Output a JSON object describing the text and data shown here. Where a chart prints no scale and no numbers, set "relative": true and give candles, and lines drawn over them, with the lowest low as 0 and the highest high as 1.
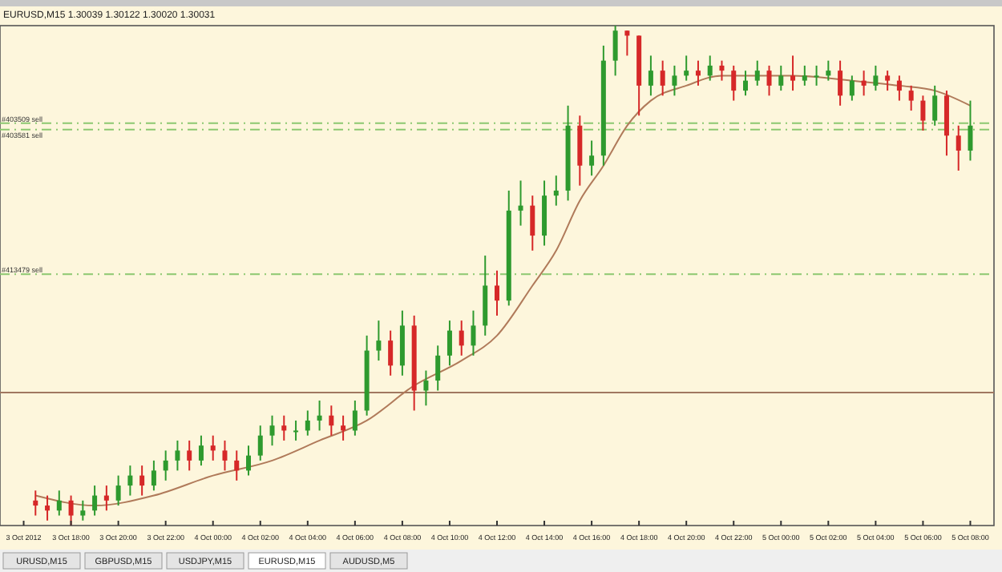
{
  "chart_data": {
    "type": "candlestick",
    "title": "EURUSD,M15  1.30039 1.30122 1.30020 1.30031",
    "relative": true,
    "x": [
      "2012-10-03T16:30",
      "2012-10-03T17:00",
      "2012-10-03T17:30",
      "2012-10-03T18:00",
      "2012-10-03T18:30",
      "2012-10-03T19:00",
      "2012-10-03T19:30",
      "2012-10-03T20:00",
      "2012-10-03T20:30",
      "2012-10-03T21:00",
      "2012-10-03T21:30",
      "2012-10-03T22:00",
      "2012-10-03T22:30",
      "2012-10-03T23:00",
      "2012-10-03T23:30",
      "2012-10-04T00:00",
      "2012-10-04T00:30",
      "2012-10-04T01:00",
      "2012-10-04T01:30",
      "2012-10-04T02:00",
      "2012-10-04T02:30",
      "2012-10-04T03:00",
      "2012-10-04T03:30",
      "2012-10-04T04:00",
      "2012-10-04T04:30",
      "2012-10-04T05:00",
      "2012-10-04T05:30",
      "2012-10-04T06:00",
      "2012-10-04T06:30",
      "2012-10-04T07:00",
      "2012-10-04T07:30",
      "2012-10-04T08:00",
      "2012-10-04T08:30",
      "2012-10-04T09:00",
      "2012-10-04T09:30",
      "2012-10-04T10:00",
      "2012-10-04T10:30",
      "2012-10-04T11:00",
      "2012-10-04T11:30",
      "2012-10-04T12:00",
      "2012-10-04T12:30",
      "2012-10-04T13:00",
      "2012-10-04T13:30",
      "2012-10-04T14:00",
      "2012-10-04T14:30",
      "2012-10-04T15:00",
      "2012-10-04T15:30",
      "2012-10-04T16:00",
      "2012-10-04T16:30",
      "2012-10-04T17:00",
      "2012-10-04T17:30",
      "2012-10-04T18:00",
      "2012-10-04T18:30",
      "2012-10-04T19:00",
      "2012-10-04T19:30",
      "2012-10-04T20:00",
      "2012-10-04T20:30",
      "2012-10-04T21:00",
      "2012-10-04T21:30",
      "2012-10-04T22:00",
      "2012-10-04T22:30",
      "2012-10-04T23:00",
      "2012-10-04T23:30",
      "2012-10-05T00:00",
      "2012-10-05T00:30",
      "2012-10-05T01:00",
      "2012-10-05T01:30",
      "2012-10-05T02:00",
      "2012-10-05T02:30",
      "2012-10-05T03:00",
      "2012-10-05T03:30",
      "2012-10-05T04:00",
      "2012-10-05T04:30",
      "2012-10-05T05:00",
      "2012-10-05T05:30",
      "2012-10-05T06:00",
      "2012-10-05T06:30",
      "2012-10-05T07:00",
      "2012-10-05T07:30",
      "2012-10-05T08:00"
    ],
    "ohlc": [
      [
        0.05,
        0.07,
        0.02,
        0.04
      ],
      [
        0.04,
        0.06,
        0.01,
        0.03
      ],
      [
        0.03,
        0.07,
        0.02,
        0.05
      ],
      [
        0.05,
        0.06,
        0.0,
        0.02
      ],
      [
        0.02,
        0.05,
        0.01,
        0.03
      ],
      [
        0.03,
        0.08,
        0.02,
        0.06
      ],
      [
        0.06,
        0.08,
        0.03,
        0.05
      ],
      [
        0.05,
        0.1,
        0.04,
        0.08
      ],
      [
        0.08,
        0.12,
        0.06,
        0.1
      ],
      [
        0.1,
        0.12,
        0.06,
        0.08
      ],
      [
        0.08,
        0.13,
        0.07,
        0.11
      ],
      [
        0.11,
        0.15,
        0.09,
        0.13
      ],
      [
        0.13,
        0.17,
        0.11,
        0.15
      ],
      [
        0.15,
        0.17,
        0.11,
        0.13
      ],
      [
        0.13,
        0.18,
        0.12,
        0.16
      ],
      [
        0.16,
        0.18,
        0.13,
        0.15
      ],
      [
        0.15,
        0.17,
        0.11,
        0.13
      ],
      [
        0.13,
        0.15,
        0.09,
        0.11
      ],
      [
        0.11,
        0.16,
        0.1,
        0.14
      ],
      [
        0.14,
        0.2,
        0.13,
        0.18
      ],
      [
        0.18,
        0.22,
        0.16,
        0.2
      ],
      [
        0.2,
        0.22,
        0.17,
        0.19
      ],
      [
        0.19,
        0.21,
        0.17,
        0.19
      ],
      [
        0.19,
        0.23,
        0.18,
        0.21
      ],
      [
        0.21,
        0.25,
        0.19,
        0.22
      ],
      [
        0.22,
        0.24,
        0.18,
        0.2
      ],
      [
        0.2,
        0.22,
        0.17,
        0.19
      ],
      [
        0.19,
        0.25,
        0.18,
        0.23
      ],
      [
        0.23,
        0.38,
        0.22,
        0.35
      ],
      [
        0.35,
        0.41,
        0.33,
        0.37
      ],
      [
        0.37,
        0.39,
        0.3,
        0.32
      ],
      [
        0.32,
        0.43,
        0.3,
        0.4
      ],
      [
        0.4,
        0.42,
        0.23,
        0.27
      ],
      [
        0.27,
        0.31,
        0.24,
        0.29
      ],
      [
        0.29,
        0.36,
        0.27,
        0.34
      ],
      [
        0.34,
        0.41,
        0.32,
        0.39
      ],
      [
        0.39,
        0.41,
        0.34,
        0.36
      ],
      [
        0.36,
        0.43,
        0.34,
        0.4
      ],
      [
        0.4,
        0.54,
        0.38,
        0.48
      ],
      [
        0.48,
        0.51,
        0.42,
        0.45
      ],
      [
        0.45,
        0.67,
        0.44,
        0.63
      ],
      [
        0.63,
        0.69,
        0.6,
        0.64
      ],
      [
        0.64,
        0.66,
        0.55,
        0.58
      ],
      [
        0.58,
        0.69,
        0.56,
        0.66
      ],
      [
        0.66,
        0.7,
        0.64,
        0.67
      ],
      [
        0.67,
        0.84,
        0.65,
        0.8
      ],
      [
        0.8,
        0.82,
        0.68,
        0.72
      ],
      [
        0.72,
        0.77,
        0.7,
        0.74
      ],
      [
        0.74,
        0.96,
        0.72,
        0.93
      ],
      [
        0.93,
        1.0,
        0.9,
        0.99
      ],
      [
        0.99,
        0.99,
        0.94,
        0.98
      ],
      [
        0.98,
        0.98,
        0.82,
        0.88
      ],
      [
        0.88,
        0.94,
        0.86,
        0.91
      ],
      [
        0.91,
        0.93,
        0.86,
        0.88
      ],
      [
        0.88,
        0.92,
        0.86,
        0.9
      ],
      [
        0.9,
        0.94,
        0.89,
        0.91
      ],
      [
        0.91,
        0.93,
        0.88,
        0.9
      ],
      [
        0.9,
        0.94,
        0.89,
        0.92
      ],
      [
        0.92,
        0.93,
        0.89,
        0.91
      ],
      [
        0.91,
        0.92,
        0.85,
        0.87
      ],
      [
        0.87,
        0.91,
        0.86,
        0.89
      ],
      [
        0.89,
        0.93,
        0.88,
        0.91
      ],
      [
        0.91,
        0.92,
        0.86,
        0.88
      ],
      [
        0.88,
        0.92,
        0.87,
        0.9
      ],
      [
        0.9,
        0.94,
        0.87,
        0.89
      ],
      [
        0.89,
        0.92,
        0.88,
        0.9
      ],
      [
        0.9,
        0.92,
        0.88,
        0.9
      ],
      [
        0.9,
        0.93,
        0.89,
        0.91
      ],
      [
        0.91,
        0.93,
        0.84,
        0.86
      ],
      [
        0.86,
        0.9,
        0.85,
        0.89
      ],
      [
        0.89,
        0.91,
        0.86,
        0.88
      ],
      [
        0.88,
        0.92,
        0.87,
        0.9
      ],
      [
        0.9,
        0.91,
        0.87,
        0.89
      ],
      [
        0.89,
        0.9,
        0.85,
        0.87
      ],
      [
        0.87,
        0.88,
        0.83,
        0.85
      ],
      [
        0.85,
        0.86,
        0.79,
        0.81
      ],
      [
        0.81,
        0.88,
        0.8,
        0.86
      ],
      [
        0.86,
        0.87,
        0.74,
        0.78
      ],
      [
        0.78,
        0.8,
        0.71,
        0.75
      ],
      [
        0.75,
        0.85,
        0.73,
        0.8
      ]
    ],
    "series": [
      {
        "type": "line",
        "color": "#b07a5a",
        "x": [
          "2012-10-03T16:30",
          "2012-10-03T19:00",
          "2012-10-03T21:30",
          "2012-10-04T00:00",
          "2012-10-04T02:30",
          "2012-10-04T04:30",
          "2012-10-04T06:30",
          "2012-10-04T08:30",
          "2012-10-04T10:30",
          "2012-10-04T12:00",
          "2012-10-04T13:30",
          "2012-10-04T14:30",
          "2012-10-04T15:30",
          "2012-10-04T16:30",
          "2012-10-04T17:30",
          "2012-10-04T18:30",
          "2012-10-04T20:00",
          "2012-10-04T21:30",
          "2012-10-05T00:30",
          "2012-10-05T03:00",
          "2012-10-05T05:00",
          "2012-10-05T06:30",
          "2012-10-05T08:00"
        ],
        "values": [
          0.06,
          0.04,
          0.06,
          0.1,
          0.13,
          0.17,
          0.21,
          0.28,
          0.33,
          0.38,
          0.48,
          0.55,
          0.65,
          0.72,
          0.8,
          0.85,
          0.88,
          0.9,
          0.9,
          0.89,
          0.88,
          0.87,
          0.84
        ]
      }
    ],
    "xlim": [
      "2012-10-03T15:00",
      "2012-10-05T09:00"
    ],
    "xticks": [
      {
        "value": "2012-10-03T16:00",
        "label": "3 Oct 2012"
      },
      {
        "value": "2012-10-03T18:00",
        "label": "3 Oct 18:00"
      },
      {
        "value": "2012-10-03T20:00",
        "label": "3 Oct 20:00"
      },
      {
        "value": "2012-10-03T22:00",
        "label": "3 Oct 22:00"
      },
      {
        "value": "2012-10-04T00:00",
        "label": "4 Oct 00:00"
      },
      {
        "value": "2012-10-04T02:00",
        "label": "4 Oct 02:00"
      },
      {
        "value": "2012-10-04T04:00",
        "label": "4 Oct 04:00"
      },
      {
        "value": "2012-10-04T06:00",
        "label": "4 Oct 06:00"
      },
      {
        "value": "2012-10-04T08:00",
        "label": "4 Oct 08:00"
      },
      {
        "value": "2012-10-04T10:00",
        "label": "4 Oct 10:00"
      },
      {
        "value": "2012-10-04T12:00",
        "label": "4 Oct 12:00"
      },
      {
        "value": "2012-10-04T14:00",
        "label": "4 Oct 14:00"
      },
      {
        "value": "2012-10-04T16:00",
        "label": "4 Oct 16:00"
      },
      {
        "value": "2012-10-04T18:00",
        "label": "4 Oct 18:00"
      },
      {
        "value": "2012-10-04T20:00",
        "label": "4 Oct 20:00"
      },
      {
        "value": "2012-10-04T22:00",
        "label": "4 Oct 22:00"
      },
      {
        "value": "2012-10-05T00:00",
        "label": "5 Oct 00:00"
      },
      {
        "value": "2012-10-05T02:00",
        "label": "5 Oct 02:00"
      },
      {
        "value": "2012-10-05T04:00",
        "label": "5 Oct 04:00"
      },
      {
        "value": "2012-10-05T06:00",
        "label": "5 Oct 06:00"
      },
      {
        "value": "2012-10-05T08:00",
        "label": "5 Oct 08:00"
      }
    ],
    "ref_lines": [
      {
        "axis": "y",
        "value": 0.805,
        "label": "#403509 sell",
        "color": "#8cc870",
        "line_style": "dashdot"
      },
      {
        "axis": "y",
        "value": 0.792,
        "label": "#403581 sell",
        "color": "#8cc870",
        "line_style": "dashdot"
      },
      {
        "axis": "y",
        "value": 0.503,
        "label": "#413479 sell",
        "color": "#8cc870",
        "line_style": "dashdot"
      },
      {
        "axis": "y",
        "value": 0.266,
        "color": "#a07860",
        "line_style": "solid"
      }
    ],
    "annotations": [
      "URUSD,M15",
      "GBPUSD,M15",
      "USDJPY,M15",
      "EURUSD,M15",
      "AUDUSD,M5"
    ]
  }
}
